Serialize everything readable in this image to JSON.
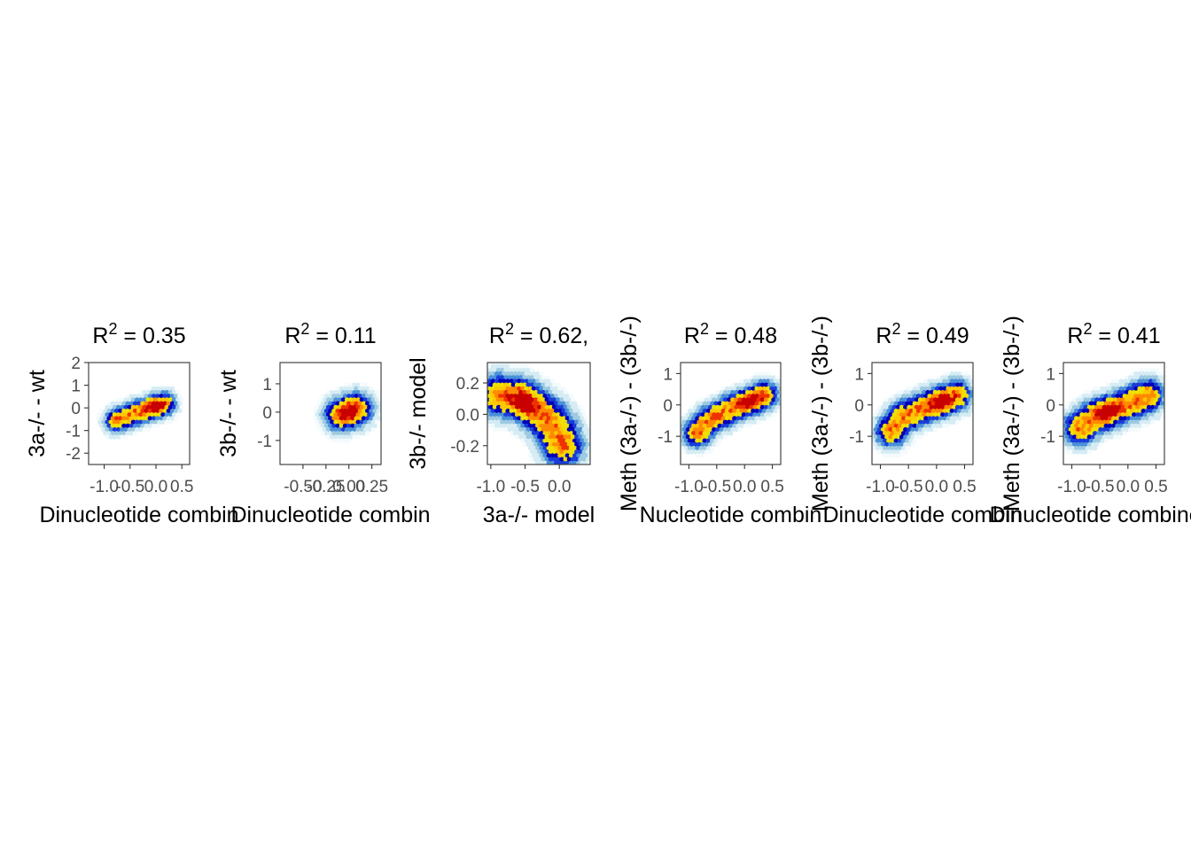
{
  "chart_data": [
    {
      "type": "heatmap",
      "title": "R² = 0.35",
      "title_prefix": "R",
      "title_sup": "2",
      "title_suffix": " = 0.35",
      "xlabel": "Dinucleotide combin",
      "ylabel": "3a-/- - wt",
      "xlim": [
        -1.3,
        0.65
      ],
      "ylim": [
        -2.5,
        2.0
      ],
      "x_ticks": [
        -1.0,
        -0.5,
        0.0,
        0.5
      ],
      "x_tick_labels": [
        "-1.0",
        "-0.5",
        "0.0",
        "0.5"
      ],
      "y_ticks": [
        -2,
        -1,
        0,
        1,
        2
      ],
      "y_tick_labels": [
        "-2",
        "-1",
        "0",
        "1",
        "2"
      ],
      "density_ridge": [
        [
          -0.75,
          -0.55
        ],
        [
          -0.45,
          -0.3
        ],
        [
          -0.2,
          -0.1
        ],
        [
          0.0,
          0.05
        ],
        [
          0.15,
          0.15
        ]
      ],
      "density_peak": [
        0.0,
        0.05
      ],
      "spread": 0.2
    },
    {
      "type": "heatmap",
      "title": "R² = 0.11",
      "title_prefix": "R",
      "title_sup": "2",
      "title_suffix": " = 0.11",
      "xlabel": "Dinucleotide combin",
      "ylabel": "3b-/- - wt",
      "xlim": [
        -0.75,
        0.35
      ],
      "ylim": [
        -1.85,
        1.75
      ],
      "x_ticks": [
        -0.5,
        -0.25,
        0.0,
        0.25
      ],
      "x_tick_labels": [
        "-0.50",
        "-0.25",
        "0.00",
        "0.25"
      ],
      "y_ticks": [
        -1,
        0,
        1
      ],
      "y_tick_labels": [
        "-1",
        "0",
        "1"
      ],
      "density_ridge": [
        [
          -0.08,
          -0.1
        ],
        [
          0.0,
          0.0
        ],
        [
          0.08,
          0.1
        ]
      ],
      "density_peak": [
        0.0,
        0.0
      ],
      "spread": 0.28
    },
    {
      "type": "heatmap",
      "title": "R² = 0.62,",
      "title_prefix": "R",
      "title_sup": "2",
      "title_suffix": " = 0.62,",
      "xlabel": "3a-/- model",
      "ylabel": "3b-/- model",
      "xlim": [
        -1.05,
        0.45
      ],
      "ylim": [
        -0.32,
        0.33
      ],
      "x_ticks": [
        -1.0,
        -0.5,
        0.0
      ],
      "x_tick_labels": [
        "-1.0",
        "-0.5",
        "0.0"
      ],
      "y_ticks": [
        -0.2,
        0.0,
        0.2
      ],
      "y_tick_labels": [
        "-0.2",
        "0.0",
        "0.2"
      ],
      "density_ridge": [
        [
          -0.85,
          0.12
        ],
        [
          -0.6,
          0.1
        ],
        [
          -0.4,
          0.05
        ],
        [
          -0.2,
          -0.02
        ],
        [
          -0.05,
          -0.1
        ],
        [
          0.05,
          -0.2
        ]
      ],
      "density_peak": [
        -0.5,
        0.08
      ],
      "spread": 0.35
    },
    {
      "type": "heatmap",
      "title": "R² = 0.48",
      "title_prefix": "R",
      "title_sup": "2",
      "title_suffix": " = 0.48",
      "xlabel": "Nucleotide combin",
      "ylabel": "Meth (3a-/-) - (3b-/-)",
      "xlim": [
        -1.15,
        0.65
      ],
      "ylim": [
        -1.9,
        1.35
      ],
      "x_ticks": [
        -1.0,
        -0.5,
        0.0,
        0.5
      ],
      "x_tick_labels": [
        "-1.0",
        "-0.5",
        "0.0",
        "0.5"
      ],
      "y_ticks": [
        -1,
        0,
        1
      ],
      "y_tick_labels": [
        "-1",
        "0",
        "1"
      ],
      "density_ridge": [
        [
          -0.85,
          -0.9
        ],
        [
          -0.6,
          -0.45
        ],
        [
          -0.4,
          -0.3
        ],
        [
          -0.15,
          -0.05
        ],
        [
          0.1,
          0.1
        ],
        [
          0.35,
          0.3
        ]
      ],
      "density_peak": [
        0.1,
        0.1
      ],
      "spread": 0.24
    },
    {
      "type": "heatmap",
      "title": "R² = 0.49",
      "title_prefix": "R",
      "title_sup": "2",
      "title_suffix": " = 0.49",
      "xlabel": "Dinucleotide combin",
      "ylabel": "Meth (3a-/-) - (3b-/-)",
      "xlim": [
        -1.15,
        0.65
      ],
      "ylim": [
        -1.9,
        1.35
      ],
      "x_ticks": [
        -1.0,
        -0.5,
        0.0,
        0.5
      ],
      "x_tick_labels": [
        "-1.0",
        "-0.5",
        "0.0",
        "0.5"
      ],
      "y_ticks": [
        -1,
        0,
        1
      ],
      "y_tick_labels": [
        "-1",
        "0",
        "1"
      ],
      "density_ridge": [
        [
          -0.8,
          -0.85
        ],
        [
          -0.6,
          -0.4
        ],
        [
          -0.35,
          -0.2
        ],
        [
          -0.1,
          0.0
        ],
        [
          0.1,
          0.1
        ],
        [
          0.35,
          0.3
        ]
      ],
      "density_peak": [
        0.1,
        0.1
      ],
      "spread": 0.26
    },
    {
      "type": "heatmap",
      "title": "R² = 0.41",
      "title_prefix": "R",
      "title_sup": "2",
      "title_suffix": " = 0.41",
      "xlabel": "Dinucleotide combined m",
      "ylabel": "Meth (3a-/-) - (3b-/-)",
      "xlim": [
        -1.15,
        0.65
      ],
      "ylim": [
        -1.9,
        1.35
      ],
      "x_ticks": [
        -1.0,
        -0.5,
        0.0,
        0.5
      ],
      "x_tick_labels": [
        "-1.0",
        "-0.5",
        "0.0",
        "0.5"
      ],
      "y_ticks": [
        -1,
        0,
        1
      ],
      "y_tick_labels": [
        "-1",
        "0",
        "1"
      ],
      "density_ridge": [
        [
          -0.85,
          -0.75
        ],
        [
          -0.6,
          -0.4
        ],
        [
          -0.35,
          -0.25
        ],
        [
          -0.1,
          -0.05
        ],
        [
          0.15,
          0.1
        ],
        [
          0.35,
          0.3
        ]
      ],
      "density_peak": [
        -0.4,
        -0.25
      ],
      "spread": 0.28
    }
  ],
  "colors": {
    "background": "#ffffff",
    "frame": "#333333",
    "tick_label": "#4d4d4d",
    "density_scale": [
      "#f4fbfd",
      "#d6ecf4",
      "#9ecae1",
      "#4a90d9",
      "#1a3cd8",
      "#0000b8",
      "#f0e000",
      "#ffc800",
      "#ff8a00",
      "#ee3300",
      "#c80000"
    ]
  }
}
